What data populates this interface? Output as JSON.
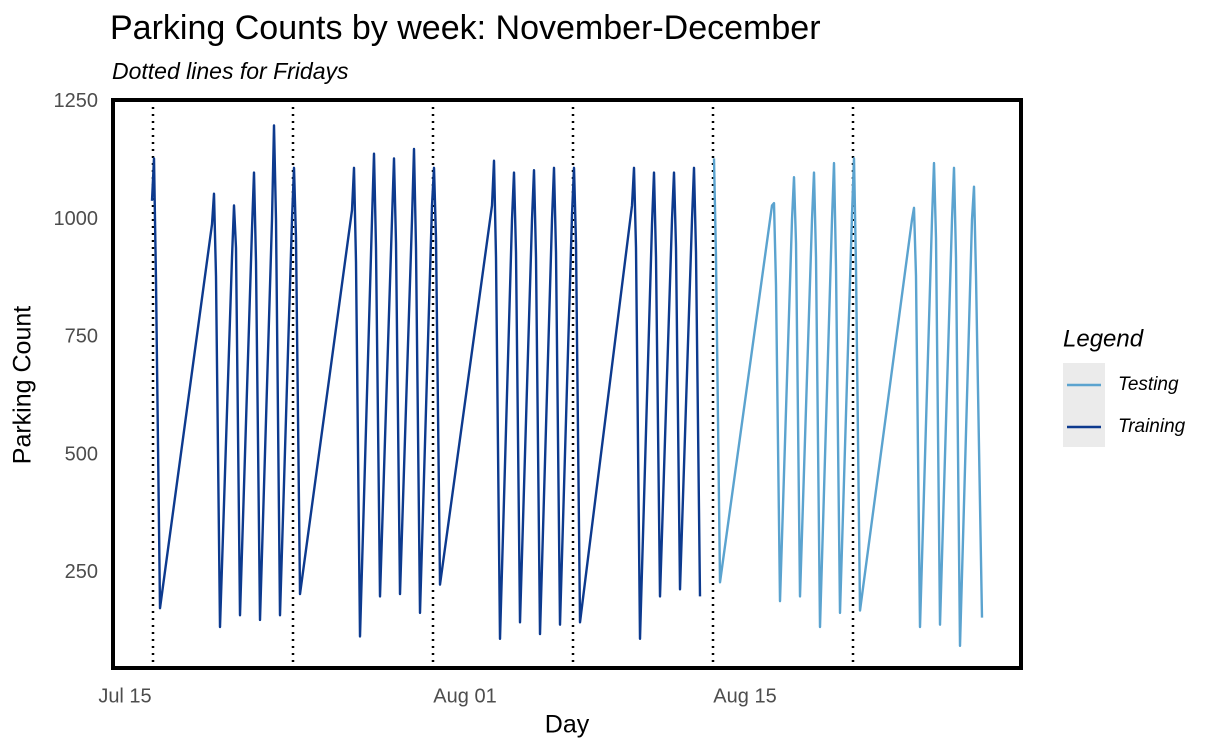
{
  "chart_data": {
    "type": "line",
    "title": "Parking Counts by week: November-December",
    "subtitle": "Dotted lines for Fridays",
    "x_label": "Day",
    "y_label": "Parking Count",
    "legend_title": "Legend",
    "legend_position": "right",
    "grid": false,
    "xlim": [
      14.4,
      59.8
    ],
    "xticks": [
      {
        "value": 15,
        "label": "Jul 15"
      },
      {
        "value": 32,
        "label": "Aug 01"
      },
      {
        "value": 46,
        "label": "Aug 15"
      }
    ],
    "ylim": [
      48,
      1254
    ],
    "yticks": [
      250,
      500,
      750,
      1000,
      1250
    ],
    "vlines": [
      16.4,
      23.4,
      30.4,
      37.4,
      44.4,
      51.4
    ],
    "series": [
      {
        "name": "Testing",
        "color": "#5ba3cf",
        "x": [
          44.45,
          44.55,
          44.75,
          47.35,
          47.45,
          47.55,
          47.75,
          48.35,
          48.45,
          48.55,
          48.75,
          49.35,
          49.45,
          49.55,
          49.75,
          50.35,
          50.45,
          50.55,
          50.75,
          51.35,
          51.45,
          51.55,
          51.75,
          54.35,
          54.45,
          54.55,
          54.75,
          55.35,
          55.45,
          55.55,
          55.75,
          56.35,
          56.45,
          56.55,
          56.75,
          57.35,
          57.45,
          57.55,
          57.85
        ],
        "values": [
          1130,
          920,
          230,
          1030,
          1035,
          860,
          190,
          1000,
          1090,
          950,
          200,
          1000,
          1100,
          920,
          135,
          1000,
          1120,
          900,
          165,
          1010,
          1130,
          900,
          170,
          1000,
          1025,
          880,
          135,
          1000,
          1120,
          960,
          140,
          1000,
          1110,
          920,
          95,
          1000,
          1070,
          880,
          155
        ]
      },
      {
        "name": "Training",
        "color": "#0d3a8e",
        "x": [
          16.35,
          16.45,
          16.55,
          16.75,
          19.35,
          19.45,
          19.55,
          19.75,
          20.35,
          20.45,
          20.55,
          20.75,
          21.35,
          21.45,
          21.55,
          21.75,
          22.35,
          22.45,
          22.55,
          22.75,
          23.35,
          23.45,
          23.55,
          23.75,
          26.35,
          26.45,
          26.55,
          26.75,
          27.35,
          27.45,
          27.55,
          27.75,
          28.35,
          28.45,
          28.55,
          28.75,
          29.35,
          29.45,
          29.55,
          29.75,
          30.35,
          30.45,
          30.55,
          30.75,
          33.35,
          33.45,
          33.55,
          33.75,
          34.35,
          34.45,
          34.55,
          34.75,
          35.35,
          35.45,
          35.55,
          35.75,
          36.35,
          36.45,
          36.55,
          36.75,
          37.35,
          37.45,
          37.55,
          37.75,
          40.35,
          40.45,
          40.55,
          40.75,
          41.35,
          41.45,
          41.55,
          41.75,
          42.35,
          42.45,
          42.55,
          42.75,
          43.35,
          43.45,
          43.55,
          43.75
        ],
        "values": [
          1040,
          1130,
          870,
          175,
          990,
          1055,
          880,
          135,
          920,
          1030,
          940,
          160,
          980,
          1100,
          910,
          150,
          1000,
          1200,
          1000,
          160,
          1000,
          1110,
          960,
          205,
          1020,
          1110,
          910,
          115,
          1000,
          1140,
          940,
          200,
          1000,
          1130,
          950,
          205,
          1000,
          1150,
          940,
          165,
          1030,
          1110,
          960,
          225,
          1030,
          1125,
          920,
          110,
          1000,
          1100,
          930,
          145,
          1000,
          1105,
          920,
          120,
          1000,
          1110,
          930,
          140,
          1010,
          1110,
          950,
          145,
          1030,
          1110,
          940,
          110,
          990,
          1100,
          920,
          200,
          1000,
          1100,
          940,
          215,
          1000,
          1110,
          930,
          200
        ]
      }
    ]
  }
}
